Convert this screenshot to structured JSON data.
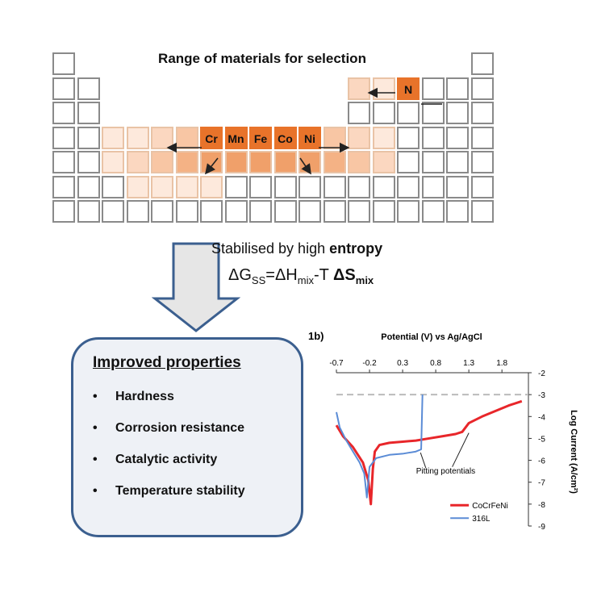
{
  "periodic_table": {
    "title": "Range of materials for selection",
    "highlighted_elements": [
      "Cr",
      "Mn",
      "Fe",
      "Co",
      "Ni"
    ],
    "interstitial_element": "N"
  },
  "entropy": {
    "line1_prefix": "Stabilised by high ",
    "line1_bold": "entropy",
    "eq_g": "ΔG",
    "eq_g_sub": "SS",
    "eq_h": "=ΔH",
    "eq_h_sub": "mix",
    "eq_t": "-T ",
    "eq_s": "ΔS",
    "eq_s_sub": "mix"
  },
  "properties": {
    "title": "Improved properties",
    "items": [
      "Hardness",
      "Corrosion resistance",
      "Catalytic activity",
      "Temperature stability"
    ]
  },
  "chart_data": {
    "type": "line",
    "panel_label": "1b)",
    "xlabel": "Potential (V) vs Ag/AgCl",
    "ylabel": "Log Current (A/cm²)",
    "x_ticks": [
      "-0.7",
      "-0.2",
      "0.3",
      "0.8",
      "1.3",
      "1.8"
    ],
    "y_ticks": [
      "-2",
      "-3",
      "-4",
      "-5",
      "-6",
      "-7",
      "-8",
      "-9"
    ],
    "xlim": [
      -0.7,
      2.2
    ],
    "ylim": [
      -9,
      -2
    ],
    "reference_line_y": -3,
    "annotation": "Pitting potentials",
    "series": [
      {
        "name": "CoCrFeNi",
        "color": "#e8262a",
        "x": [
          -0.7,
          -0.6,
          -0.45,
          -0.3,
          -0.22,
          -0.18,
          -0.15,
          -0.12,
          -0.05,
          0.1,
          0.3,
          0.5,
          0.7,
          0.9,
          1.1,
          1.2,
          1.3,
          1.5,
          1.7,
          1.9,
          2.1
        ],
        "y": [
          -4.4,
          -4.9,
          -5.4,
          -6.1,
          -6.9,
          -8.0,
          -6.4,
          -5.6,
          -5.3,
          -5.2,
          -5.15,
          -5.1,
          -5.0,
          -4.9,
          -4.8,
          -4.7,
          -4.3,
          -4.0,
          -3.75,
          -3.5,
          -3.3
        ]
      },
      {
        "name": "316L",
        "color": "#5b8cd6",
        "x": [
          -0.7,
          -0.65,
          -0.55,
          -0.45,
          -0.35,
          -0.28,
          -0.24,
          -0.2,
          -0.1,
          0.1,
          0.3,
          0.5,
          0.58,
          0.6
        ],
        "y": [
          -3.8,
          -4.5,
          -5.1,
          -5.6,
          -6.1,
          -6.6,
          -7.7,
          -6.3,
          -5.9,
          -5.75,
          -5.7,
          -5.6,
          -5.5,
          -3.0
        ]
      }
    ],
    "legend_position": "bottom-right"
  }
}
